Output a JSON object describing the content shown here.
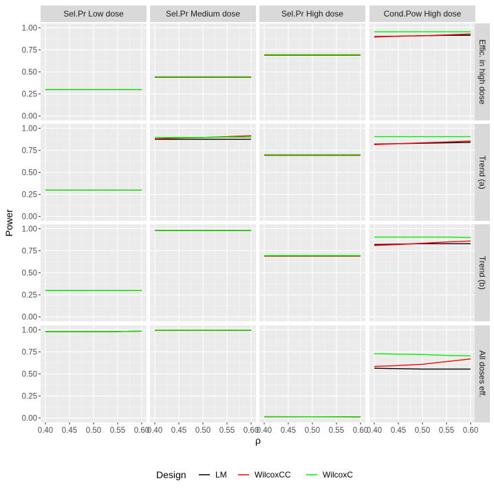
{
  "chart_data": {
    "type": "line",
    "xlabel": "ρ",
    "ylabel": "Power",
    "x": [
      0.4,
      0.45,
      0.5,
      0.55,
      0.6
    ],
    "x_ticks": [
      "0.40",
      "0.45",
      "0.50",
      "0.55",
      "0.60"
    ],
    "y_ticks": [
      "0.00",
      "0.25",
      "0.50",
      "0.75",
      "1.00"
    ],
    "xlim": [
      0.39,
      0.61
    ],
    "ylim": [
      -0.05,
      1.05
    ],
    "grid": true,
    "legend": {
      "title": "Design",
      "position": "bottom",
      "entries": [
        {
          "name": "LM",
          "color": "#000000"
        },
        {
          "name": "WilcoxCC",
          "color": "#ff0000"
        },
        {
          "name": "WilcoxC",
          "color": "#00ee00"
        }
      ]
    },
    "columns": [
      "Sel.Pr Low dose",
      "Sel.Pr Medium dose",
      "Sel.Pr High dose",
      "Cond.Pow High dose"
    ],
    "rows": [
      "Effic. in high dose",
      "Trend (a)",
      "Trend (b)",
      "All doses eff."
    ],
    "panels": [
      [
        {
          "LM": [
            0.3,
            0.3,
            0.3,
            0.3,
            0.3
          ],
          "WilcoxCC": [
            0.3,
            0.3,
            0.3,
            0.3,
            0.3
          ],
          "WilcoxC": [
            0.3,
            0.3,
            0.3,
            0.3,
            0.3
          ]
        },
        {
          "LM": [
            0.44,
            0.44,
            0.44,
            0.44,
            0.44
          ],
          "WilcoxCC": [
            0.44,
            0.44,
            0.44,
            0.44,
            0.44
          ],
          "WilcoxC": [
            0.445,
            0.445,
            0.445,
            0.445,
            0.445
          ]
        },
        {
          "LM": [
            0.69,
            0.69,
            0.69,
            0.69,
            0.69
          ],
          "WilcoxCC": [
            0.69,
            0.69,
            0.69,
            0.69,
            0.69
          ],
          "WilcoxC": [
            0.695,
            0.695,
            0.695,
            0.695,
            0.695
          ]
        },
        {
          "LM": [
            0.9,
            0.905,
            0.91,
            0.915,
            0.915
          ],
          "WilcoxCC": [
            0.895,
            0.905,
            0.91,
            0.92,
            0.93
          ],
          "WilcoxC": [
            0.955,
            0.955,
            0.955,
            0.955,
            0.955
          ]
        }
      ],
      [
        {
          "LM": [
            0.3,
            0.3,
            0.3,
            0.3,
            0.3
          ],
          "WilcoxCC": [
            0.3,
            0.3,
            0.3,
            0.3,
            0.3
          ],
          "WilcoxC": [
            0.3,
            0.3,
            0.3,
            0.3,
            0.3
          ]
        },
        {
          "LM": [
            0.875,
            0.875,
            0.875,
            0.875,
            0.875
          ],
          "WilcoxCC": [
            0.88,
            0.89,
            0.895,
            0.905,
            0.915
          ],
          "WilcoxC": [
            0.895,
            0.895,
            0.895,
            0.9,
            0.9
          ]
        },
        {
          "LM": [
            0.695,
            0.695,
            0.695,
            0.695,
            0.695
          ],
          "WilcoxCC": [
            0.695,
            0.695,
            0.695,
            0.695,
            0.695
          ],
          "WilcoxC": [
            0.7,
            0.7,
            0.7,
            0.7,
            0.7
          ]
        },
        {
          "LM": [
            0.82,
            0.825,
            0.83,
            0.835,
            0.84
          ],
          "WilcoxCC": [
            0.815,
            0.825,
            0.835,
            0.845,
            0.855
          ],
          "WilcoxC": [
            0.905,
            0.905,
            0.905,
            0.905,
            0.905
          ]
        }
      ],
      [
        {
          "LM": [
            0.3,
            0.3,
            0.3,
            0.3,
            0.3
          ],
          "WilcoxCC": [
            0.3,
            0.3,
            0.3,
            0.3,
            0.3
          ],
          "WilcoxC": [
            0.3,
            0.3,
            0.3,
            0.3,
            0.3
          ]
        },
        {
          "LM": [
            0.98,
            0.98,
            0.98,
            0.98,
            0.98
          ],
          "WilcoxCC": [
            0.98,
            0.98,
            0.98,
            0.98,
            0.98
          ],
          "WilcoxC": [
            0.98,
            0.98,
            0.98,
            0.98,
            0.98
          ]
        },
        {
          "LM": [
            0.69,
            0.69,
            0.69,
            0.69,
            0.69
          ],
          "WilcoxCC": [
            0.69,
            0.69,
            0.69,
            0.69,
            0.69
          ],
          "WilcoxC": [
            0.695,
            0.695,
            0.695,
            0.695,
            0.695
          ]
        },
        {
          "LM": [
            0.82,
            0.825,
            0.83,
            0.83,
            0.83
          ],
          "WilcoxCC": [
            0.81,
            0.82,
            0.835,
            0.85,
            0.86
          ],
          "WilcoxC": [
            0.905,
            0.905,
            0.905,
            0.905,
            0.9
          ]
        }
      ],
      [
        {
          "LM": [
            0.98,
            0.98,
            0.98,
            0.98,
            0.985
          ],
          "WilcoxCC": [
            0.98,
            0.98,
            0.98,
            0.98,
            0.985
          ],
          "WilcoxC": [
            0.98,
            0.98,
            0.98,
            0.98,
            0.985
          ]
        },
        {
          "LM": [
            0.995,
            0.995,
            0.995,
            0.995,
            0.995
          ],
          "WilcoxCC": [
            0.995,
            0.995,
            0.995,
            0.995,
            0.995
          ],
          "WilcoxC": [
            0.995,
            0.995,
            0.995,
            0.995,
            0.995
          ]
        },
        {
          "LM": [
            0.015,
            0.015,
            0.015,
            0.015,
            0.013
          ],
          "WilcoxCC": [
            0.015,
            0.015,
            0.014,
            0.013,
            0.012
          ],
          "WilcoxC": [
            0.017,
            0.016,
            0.015,
            0.014,
            0.014
          ]
        },
        {
          "LM": [
            0.565,
            0.56,
            0.555,
            0.555,
            0.555
          ],
          "WilcoxCC": [
            0.585,
            0.595,
            0.61,
            0.64,
            0.67
          ],
          "WilcoxC": [
            0.73,
            0.725,
            0.72,
            0.71,
            0.705
          ]
        }
      ]
    ]
  }
}
